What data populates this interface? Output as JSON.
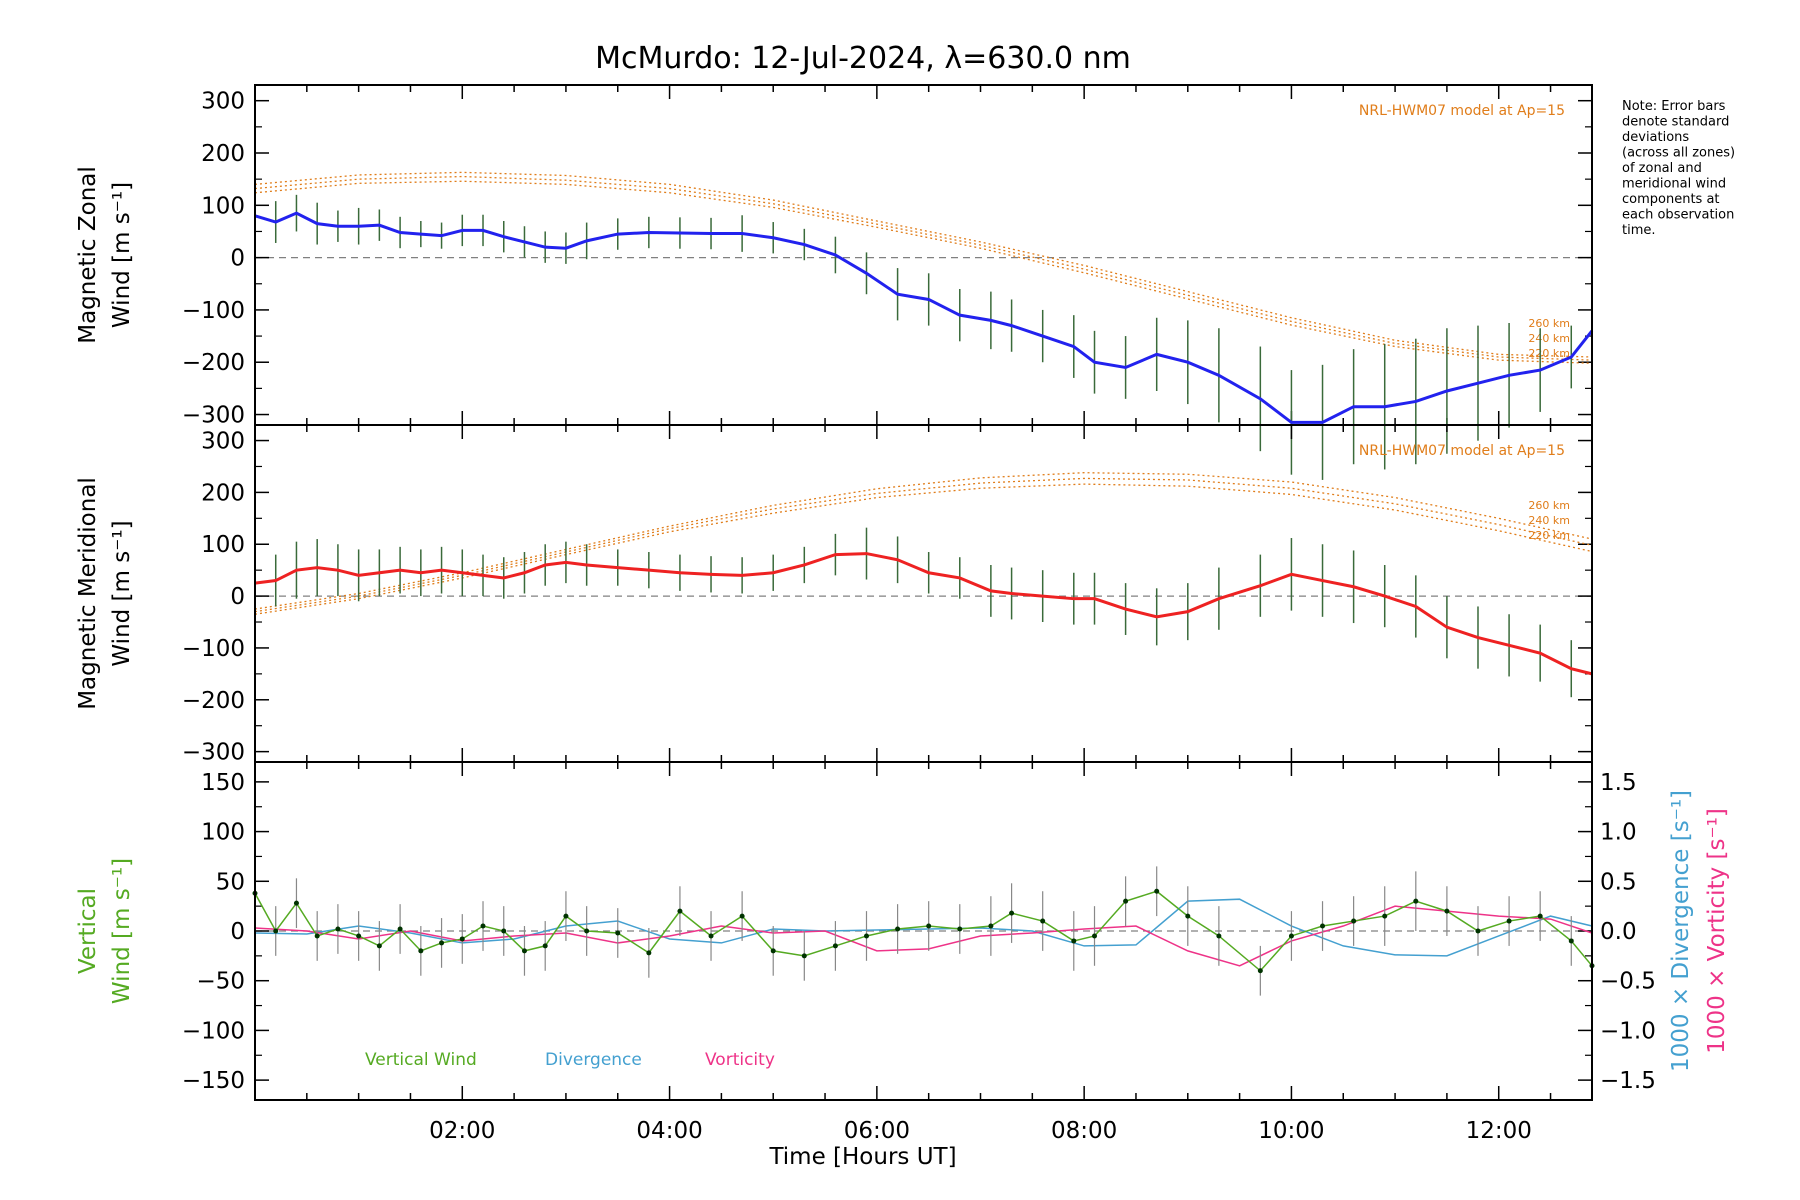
{
  "chart_data": {
    "type": "line",
    "title": "McMurdo: 12-Jul-2024, λ=630.0 nm",
    "xlabel": "Time [Hours UT]",
    "xlim": [
      0.0,
      12.9
    ],
    "x_tick_values": [
      2,
      4,
      6,
      8,
      10,
      12
    ],
    "x_tick_labels": [
      "02:00",
      "04:00",
      "06:00",
      "08:00",
      "10:00",
      "12:00"
    ],
    "note": [
      "Note: Error bars",
      "denote standard",
      "deviations",
      "(across all zones)",
      "of zonal and",
      "meridional wind",
      "components at",
      "each observation",
      "time."
    ],
    "colors": {
      "zonal": "#2222ee",
      "meridional": "#ee2222",
      "model": "#e07d1a",
      "vertical": "#55aa22",
      "divergence": "#44a0d0",
      "vorticity": "#ee3388",
      "errorbar": "#888888",
      "zero": "#808080"
    },
    "panels": [
      {
        "id": "zonal",
        "ylabel_lines": [
          "Magnetic Zonal",
          "Wind [m s⁻¹]"
        ],
        "ylim": [
          -320,
          330
        ],
        "y_ticks": [
          300,
          200,
          100,
          0,
          -100,
          -200,
          -300
        ],
        "y_tick_labels": [
          "300",
          "200",
          "100",
          "0",
          "−100",
          "−200",
          "−300"
        ],
        "model_label": "NRL-HWM07 model at Ap=15",
        "model_alt_labels": [
          "260 km",
          "240 km",
          "220 km"
        ],
        "model": {
          "x": [
            0.0,
            1.0,
            2.0,
            3.0,
            4.0,
            5.0,
            6.0,
            7.0,
            8.0,
            9.0,
            10.0,
            11.0,
            12.0,
            12.9
          ],
          "series": [
            {
              "values": [
                140,
                158,
                163,
                157,
                140,
                110,
                70,
                30,
                -15,
                -65,
                -115,
                -158,
                -185,
                -190
              ]
            },
            {
              "values": [
                132,
                150,
                155,
                148,
                132,
                103,
                64,
                24,
                -22,
                -72,
                -122,
                -164,
                -190,
                -196
              ]
            },
            {
              "values": [
                124,
                142,
                146,
                140,
                124,
                96,
                58,
                18,
                -29,
                -79,
                -129,
                -170,
                -196,
                -202
              ]
            }
          ]
        },
        "series": [
          {
            "name": "",
            "x": [
              0.0,
              0.2,
              0.4,
              0.6,
              0.8,
              1.0,
              1.2,
              1.4,
              1.6,
              1.8,
              2.0,
              2.2,
              2.4,
              2.6,
              2.8,
              3.0,
              3.2,
              3.5,
              3.8,
              4.1,
              4.4,
              4.7,
              5.0,
              5.3,
              5.6,
              5.9,
              6.2,
              6.5,
              6.8,
              7.1,
              7.3,
              7.6,
              7.9,
              8.1,
              8.4,
              8.7,
              9.0,
              9.3,
              9.7,
              10.0,
              10.3,
              10.6,
              10.9,
              11.2,
              11.5,
              11.8,
              12.1,
              12.4,
              12.7,
              12.9
            ],
            "values": [
              80,
              68,
              85,
              65,
              60,
              60,
              62,
              48,
              45,
              42,
              52,
              52,
              40,
              30,
              20,
              18,
              32,
              45,
              48,
              47,
              46,
              46,
              38,
              25,
              5,
              -30,
              -70,
              -80,
              -110,
              -120,
              -130,
              -150,
              -170,
              -200,
              -210,
              -185,
              -200,
              -225,
              -270,
              -315,
              -315,
              -285,
              -285,
              -275,
              -255,
              -240,
              -225,
              -215,
              -190,
              -140
            ],
            "err": [
              35,
              40,
              35,
              40,
              30,
              35,
              30,
              30,
              25,
              25,
              30,
              30,
              30,
              30,
              30,
              30,
              35,
              30,
              30,
              30,
              30,
              35,
              30,
              30,
              35,
              40,
              50,
              50,
              50,
              55,
              50,
              50,
              60,
              60,
              60,
              70,
              80,
              90,
              100,
              100,
              110,
              110,
              120,
              120,
              120,
              110,
              100,
              80,
              60,
              50
            ]
          }
        ]
      },
      {
        "id": "meridional",
        "ylabel_lines": [
          "Magnetic Meridional",
          "Wind [m s⁻¹]"
        ],
        "ylim": [
          -320,
          330
        ],
        "y_ticks": [
          300,
          200,
          100,
          0,
          -100,
          -200,
          -300
        ],
        "y_tick_labels": [
          "300",
          "200",
          "100",
          "0",
          "−100",
          "−200",
          "−300"
        ],
        "model_label": "NRL-HWM07 model at Ap=15",
        "model_alt_labels": [
          "260 km",
          "240 km",
          "220 km"
        ],
        "model": {
          "x": [
            0.0,
            1.0,
            2.0,
            3.0,
            4.0,
            5.0,
            6.0,
            7.0,
            8.0,
            9.0,
            10.0,
            11.0,
            12.0,
            12.9
          ],
          "series": [
            {
              "values": [
                -25,
                5,
                45,
                90,
                135,
                175,
                207,
                228,
                238,
                235,
                220,
                190,
                150,
                110
              ]
            },
            {
              "values": [
                -30,
                0,
                40,
                85,
                130,
                168,
                198,
                218,
                227,
                224,
                208,
                178,
                138,
                98
              ]
            },
            {
              "values": [
                -35,
                -5,
                35,
                80,
                124,
                160,
                190,
                208,
                216,
                212,
                196,
                166,
                126,
                86
              ]
            }
          ]
        },
        "series": [
          {
            "name": "",
            "x": [
              0.0,
              0.2,
              0.4,
              0.6,
              0.8,
              1.0,
              1.2,
              1.4,
              1.6,
              1.8,
              2.0,
              2.2,
              2.4,
              2.6,
              2.8,
              3.0,
              3.2,
              3.5,
              3.8,
              4.1,
              4.4,
              4.7,
              5.0,
              5.3,
              5.6,
              5.9,
              6.2,
              6.5,
              6.8,
              7.1,
              7.3,
              7.6,
              7.9,
              8.1,
              8.4,
              8.7,
              9.0,
              9.3,
              9.7,
              10.0,
              10.3,
              10.6,
              10.9,
              11.2,
              11.5,
              11.8,
              12.1,
              12.4,
              12.7,
              12.9
            ],
            "values": [
              25,
              30,
              50,
              55,
              50,
              40,
              45,
              50,
              45,
              50,
              45,
              40,
              35,
              45,
              60,
              65,
              60,
              55,
              50,
              45,
              42,
              40,
              45,
              60,
              80,
              82,
              70,
              45,
              35,
              10,
              5,
              0,
              -5,
              -5,
              -25,
              -40,
              -30,
              -5,
              20,
              42,
              30,
              18,
              0,
              -20,
              -60,
              -80,
              -95,
              -110,
              -140,
              -150
            ],
            "err": [
              45,
              50,
              55,
              55,
              50,
              50,
              45,
              45,
              45,
              45,
              45,
              40,
              40,
              40,
              40,
              40,
              40,
              35,
              35,
              35,
              35,
              35,
              35,
              35,
              40,
              50,
              45,
              40,
              40,
              50,
              50,
              50,
              50,
              50,
              50,
              55,
              55,
              60,
              60,
              70,
              70,
              70,
              60,
              60,
              60,
              60,
              60,
              55,
              55,
              50
            ]
          }
        ]
      },
      {
        "id": "vertical",
        "ylabel_lines": [
          "Vertical",
          "Wind [m s⁻¹]"
        ],
        "ylim": [
          -170,
          170
        ],
        "y_ticks": [
          150,
          100,
          50,
          0,
          -50,
          -100,
          -150
        ],
        "y_tick_labels": [
          "150",
          "100",
          "50",
          "0",
          "−50",
          "−100",
          "−150"
        ],
        "right_axis": {
          "ylim": [
            -1.7,
            1.7
          ],
          "ticks": [
            1.5,
            1.0,
            0.5,
            0.0,
            -0.5,
            -1.0,
            -1.5
          ],
          "tick_labels": [
            "1.5",
            "1.0",
            "0.5",
            "0.0",
            "−0.5",
            "−1.0",
            "−1.5"
          ],
          "label_div": "1000 × Divergence [s⁻¹]",
          "label_vort": "1000 × Vorticity [s⁻¹]"
        },
        "legend": [
          "Vertical Wind",
          "Divergence",
          "Vorticity"
        ],
        "vertical": {
          "x": [
            0.0,
            0.2,
            0.4,
            0.6,
            0.8,
            1.0,
            1.2,
            1.4,
            1.6,
            1.8,
            2.0,
            2.2,
            2.4,
            2.6,
            2.8,
            3.0,
            3.2,
            3.5,
            3.8,
            4.1,
            4.4,
            4.7,
            5.0,
            5.3,
            5.6,
            5.9,
            6.2,
            6.5,
            6.8,
            7.1,
            7.3,
            7.6,
            7.9,
            8.1,
            8.4,
            8.7,
            9.0,
            9.3,
            9.7,
            10.0,
            10.3,
            10.6,
            10.9,
            11.2,
            11.5,
            11.8,
            12.1,
            12.4,
            12.7,
            12.9
          ],
          "values": [
            38,
            0,
            28,
            -5,
            2,
            -5,
            -15,
            2,
            -20,
            -12,
            -8,
            5,
            0,
            -20,
            -15,
            15,
            0,
            -2,
            -22,
            20,
            -5,
            15,
            -20,
            -25,
            -15,
            -5,
            2,
            5,
            2,
            5,
            18,
            10,
            -10,
            -5,
            30,
            40,
            15,
            -5,
            -40,
            -5,
            5,
            10,
            15,
            30,
            20,
            0,
            10,
            15,
            -10,
            -35
          ],
          "err": [
            25,
            25,
            25,
            25,
            25,
            25,
            25,
            25,
            25,
            25,
            25,
            25,
            25,
            25,
            25,
            25,
            25,
            25,
            25,
            25,
            25,
            25,
            25,
            25,
            25,
            25,
            25,
            25,
            25,
            30,
            30,
            30,
            30,
            30,
            25,
            25,
            30,
            30,
            25,
            25,
            25,
            25,
            30,
            30,
            25,
            25,
            25,
            25,
            25,
            25
          ]
        },
        "divergence": {
          "x": [
            0.0,
            0.5,
            1.0,
            1.5,
            2.0,
            2.5,
            3.0,
            3.5,
            4.0,
            4.5,
            5.0,
            5.5,
            6.0,
            6.5,
            7.0,
            7.5,
            8.0,
            8.5,
            9.0,
            9.5,
            10.0,
            10.5,
            11.0,
            11.5,
            12.0,
            12.5,
            12.9
          ],
          "values": [
            -0.02,
            -0.03,
            0.05,
            -0.02,
            -0.12,
            -0.08,
            0.05,
            0.1,
            -0.08,
            -0.12,
            0.02,
            0.0,
            0.01,
            0.02,
            0.03,
            0.0,
            -0.15,
            -0.14,
            0.3,
            0.32,
            0.05,
            -0.15,
            -0.24,
            -0.25,
            -0.05,
            0.15,
            0.05
          ]
        },
        "vorticity": {
          "x": [
            0.0,
            0.5,
            1.0,
            1.5,
            2.0,
            2.5,
            3.0,
            3.5,
            4.0,
            4.5,
            5.0,
            5.5,
            6.0,
            6.5,
            7.0,
            7.5,
            8.0,
            8.5,
            9.0,
            9.5,
            10.0,
            10.5,
            11.0,
            11.5,
            12.0,
            12.5,
            12.9
          ],
          "values": [
            0.03,
            0.0,
            -0.08,
            0.0,
            -0.1,
            -0.05,
            -0.02,
            -0.12,
            -0.05,
            0.05,
            -0.02,
            0.0,
            -0.2,
            -0.18,
            -0.05,
            -0.02,
            0.02,
            0.05,
            -0.2,
            -0.35,
            -0.1,
            0.05,
            0.25,
            0.2,
            0.15,
            0.12,
            -0.02
          ]
        }
      }
    ]
  }
}
